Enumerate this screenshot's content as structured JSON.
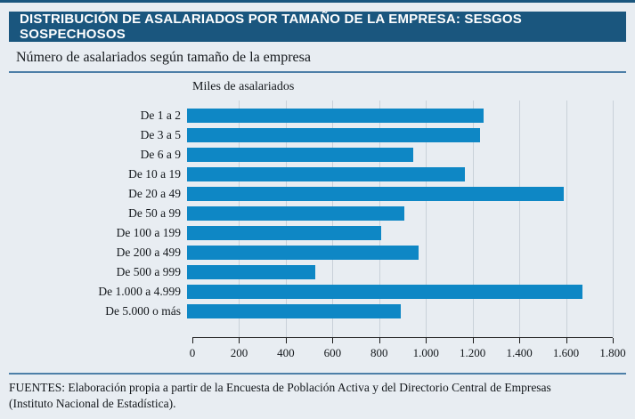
{
  "panel": {
    "title": "DISTRIBUCIÓN DE ASALARIADOS POR TAMAÑO DE LA EMPRESA: SESGOS SOSPECHOSOS",
    "subtitle": "Número de asalariados según tamaño de la empresa",
    "source_line1": "FUENTES: Elaboración propia a partir de la Encuesta de Población Activa y del Directorio Central de Empresas",
    "source_line2": "(Instituto Nacional de Estadística)."
  },
  "chart_data": {
    "type": "bar",
    "orientation": "horizontal",
    "axis_title": "Miles de asalariados",
    "categories": [
      "De 1 a 2",
      "De 3 a 5",
      "De 6 a 9",
      "De 10 a 19",
      "De 20 a 49",
      "De 50 a 99",
      "De 100 a 199",
      "De 200 a 499",
      "De 500 a 999",
      "De 1.000 a 4.999",
      "De 5.000 o más"
    ],
    "values": [
      1270,
      1255,
      970,
      1190,
      1615,
      930,
      830,
      990,
      550,
      1695,
      915
    ],
    "xlim": [
      0,
      1800
    ],
    "xtick_values": [
      0,
      200,
      400,
      600,
      800,
      1000,
      1200,
      1400,
      1600,
      1800
    ],
    "xtick_labels": [
      "0",
      "200",
      "400",
      "600",
      "800",
      "1.000",
      "1.200",
      "1.400",
      "1.600",
      "1.800"
    ],
    "grid": true,
    "legend": false,
    "bar_color": "#0e87c5"
  },
  "colors": {
    "banner": "#1a567e",
    "background": "#e8edf2",
    "bar": "#0e87c5",
    "gridline": "#c9d1d9",
    "rule": "#4d7fa8"
  }
}
